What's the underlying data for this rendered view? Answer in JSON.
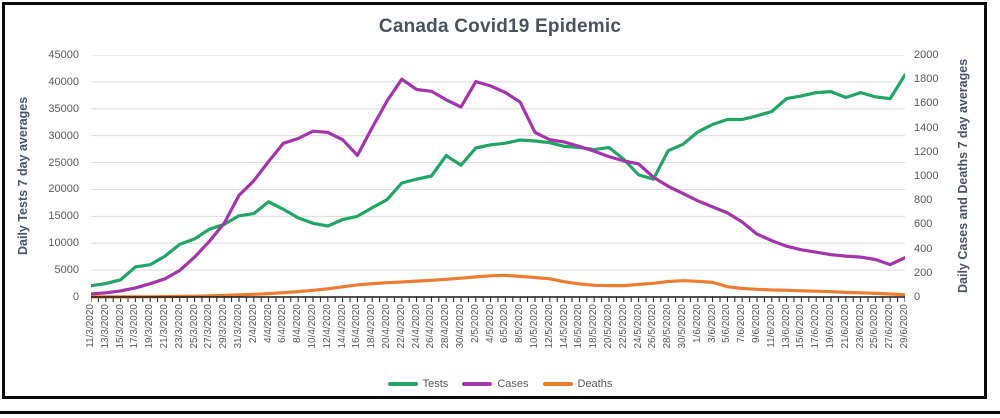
{
  "title": "Canada Covid19 Epidemic",
  "left_axis": {
    "title": "Daily Tests 7 day averages",
    "tick_labels": [
      "0",
      "5000",
      "10000",
      "15000",
      "20000",
      "25000",
      "30000",
      "35000",
      "40000",
      "45000"
    ]
  },
  "right_axis": {
    "title": "Daily Cases and Deaths 7 day averages",
    "tick_labels": [
      "0",
      "200",
      "400",
      "600",
      "800",
      "1000",
      "1200",
      "1400",
      "1600",
      "1800",
      "2000"
    ]
  },
  "legend": {
    "items": [
      {
        "label": "Tests",
        "color": "#21A663"
      },
      {
        "label": "Cases",
        "color": "#A435AE"
      },
      {
        "label": "Deaths",
        "color": "#ED7D31"
      }
    ]
  },
  "colors": {
    "tests": "#21A663",
    "cases": "#A435AE",
    "deaths": "#ED7D31",
    "gridline": "#DCDCDC",
    "axis_line": "#1a1a1a",
    "tick_text": "#595959",
    "title_text": "#4a5260",
    "axis_title_text": "#44546A",
    "frame": "#0b0b0b"
  },
  "chart_data": {
    "type": "line",
    "title": "Canada Covid19 Epidemic",
    "x_tick_labels": [
      "11/3/2020",
      "13/3/2020",
      "15/3/2020",
      "17/3/2020",
      "19/3/2020",
      "21/3/2020",
      "23/3/2020",
      "25/3/2020",
      "27/3/2020",
      "29/3/2020",
      "31/3/2020",
      "2/4/2020",
      "4/4/2020",
      "6/4/2020",
      "8/4/2020",
      "10/4/2020",
      "12/4/2020",
      "14/4/2020",
      "16/4/2020",
      "18/4/2020",
      "20/4/2020",
      "22/4/2020",
      "24/4/2020",
      "26/4/2020",
      "28/4/2020",
      "30/4/2020",
      "2/5/2020",
      "4/5/2020",
      "6/5/2020",
      "8/5/2020",
      "10/5/2020",
      "12/5/2020",
      "14/5/2020",
      "16/5/2020",
      "18/5/2020",
      "20/5/2020",
      "22/5/2020",
      "24/5/2020",
      "26/5/2020",
      "28/5/2020",
      "30/5/2020",
      "1/6/2020",
      "3/6/2020",
      "5/6/2020",
      "7/6/2020",
      "9/6/2020",
      "11/6/2020",
      "13/6/2020",
      "15/6/2020",
      "17/6/2020",
      "19/6/2020",
      "21/6/2020",
      "23/6/2020",
      "25/6/2020",
      "27/6/2020",
      "29/6/2020"
    ],
    "left_ylim": [
      0,
      45000
    ],
    "right_ylim": [
      0,
      2000
    ],
    "grid": true,
    "legend_position": "bottom",
    "series": [
      {
        "name": "Tests",
        "axis": "left",
        "color": "#21A663",
        "values": [
          2100,
          2500,
          3200,
          5600,
          6000,
          7600,
          9800,
          10800,
          12600,
          13500,
          15100,
          15500,
          17700,
          16300,
          14700,
          13700,
          13200,
          14400,
          15000,
          16600,
          18100,
          21200,
          21900,
          22500,
          26300,
          24500,
          27700,
          28300,
          28600,
          29200,
          29000,
          28700,
          28000,
          27800,
          27400,
          27800,
          25600,
          22700,
          21900,
          27200,
          28400,
          30700,
          32100,
          33000,
          33000,
          33700,
          34500,
          36900,
          37400,
          38000,
          38200,
          37100,
          38000,
          37200,
          36900,
          41300
        ]
      },
      {
        "name": "Cases",
        "axis": "right",
        "color": "#A435AE",
        "values": [
          25,
          35,
          50,
          75,
          110,
          150,
          220,
          330,
          460,
          610,
          840,
          960,
          1120,
          1270,
          1310,
          1370,
          1360,
          1300,
          1170,
          1400,
          1620,
          1800,
          1715,
          1700,
          1630,
          1570,
          1780,
          1745,
          1690,
          1610,
          1360,
          1300,
          1280,
          1245,
          1205,
          1160,
          1125,
          1100,
          990,
          915,
          855,
          795,
          745,
          695,
          620,
          520,
          465,
          420,
          390,
          370,
          350,
          338,
          330,
          310,
          268,
          325
        ]
      },
      {
        "name": "Deaths",
        "axis": "right",
        "color": "#ED7D31",
        "values": [
          1,
          1,
          1,
          2,
          2,
          3,
          5,
          7,
          10,
          13,
          17,
          22,
          28,
          36,
          45,
          55,
          68,
          84,
          100,
          110,
          118,
          124,
          131,
          138,
          146,
          155,
          166,
          175,
          179,
          170,
          161,
          150,
          126,
          108,
          97,
          94,
          94,
          104,
          113,
          128,
          135,
          130,
          121,
          85,
          70,
          64,
          58,
          55,
          51,
          48,
          44,
          38,
          35,
          30,
          25,
          19
        ]
      }
    ]
  }
}
